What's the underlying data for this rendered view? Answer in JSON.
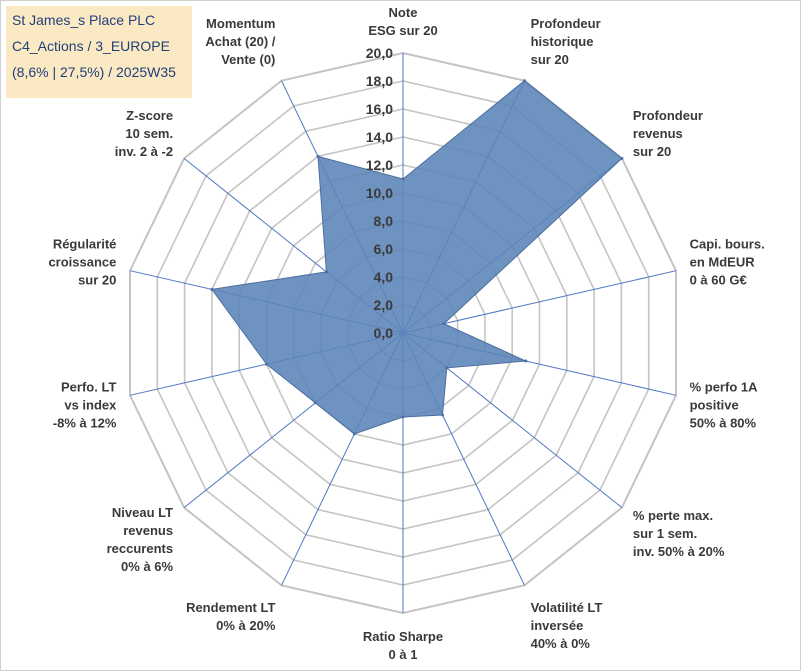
{
  "title": {
    "line1": "St James_s Place PLC",
    "line2": "C4_Actions / 3_EUROPE",
    "line3": "(8,6% | 27,5%) / 2025W35"
  },
  "chart_data": {
    "type": "radar",
    "rlim": [
      0,
      20
    ],
    "r_ticks": [
      "0,0",
      "2,0",
      "4,0",
      "6,0",
      "8,0",
      "10,0",
      "12,0",
      "14,0",
      "16,0",
      "18,0",
      "20,0"
    ],
    "grid": true,
    "axes": [
      [
        "Note",
        "ESG sur 20"
      ],
      [
        "Profondeur",
        "historique",
        "sur 20"
      ],
      [
        "Profondeur",
        "revenus",
        "sur 20"
      ],
      [
        "Capi. bours.",
        "en MdEUR",
        "0 à 60 G€"
      ],
      [
        "% perfo 1A",
        "positive",
        "50% à 80%"
      ],
      [
        "% perte max.",
        "sur 1 sem.",
        "inv. 50% à 20%"
      ],
      [
        "Volatilité LT",
        "inversée",
        "40% à 0%"
      ],
      [
        "Ratio Sharpe",
        "0 à 1"
      ],
      [
        "Rendement LT",
        "0% à 20%"
      ],
      [
        "Niveau LT",
        "revenus",
        "reccurents",
        "0% à 6%"
      ],
      [
        "Perfo. LT",
        "vs index",
        "-8% à 12%"
      ],
      [
        "Régularité",
        "croissance",
        "sur 20"
      ],
      [
        "Z-score",
        "10 sem.",
        "inv. 2 à -2"
      ],
      [
        "Momentum",
        "Achat (20) /",
        "Vente (0)"
      ]
    ],
    "values": [
      11.0,
      20.0,
      20.0,
      3.0,
      9.0,
      4.0,
      6.5,
      6.0,
      8.0,
      8.0,
      10.0,
      14.0,
      7.0,
      14.0
    ],
    "series_color": "#5b84b8",
    "series_line": "#4a6fa0",
    "grid_color": "#c4c4c4",
    "spoke_color": "#4f77c4"
  }
}
